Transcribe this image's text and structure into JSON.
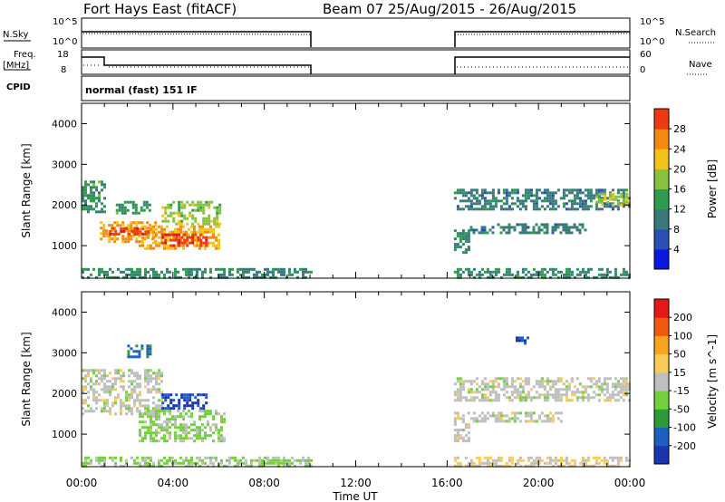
{
  "header": {
    "title": "Fort Hays East (fitACF)",
    "beam_date": "Beam 07  25/Aug/2015 - 26/Aug/2015"
  },
  "top_panels": {
    "nsky_label": "N.Sky",
    "nsearch_label": "N.Search",
    "noise_ticks": [
      "10^5",
      "10^0"
    ],
    "freq_label": "Freq.",
    "freq_unit": "[MHz]",
    "freq_ticks": [
      "18",
      "8"
    ],
    "nave_label": "Nave",
    "nave_ticks": [
      "60",
      "0"
    ],
    "cpid_label": "CPID",
    "cpid_value": "normal (fast) 151 IF"
  },
  "time_axis": {
    "label": "Time UT",
    "ticks": [
      "00:00",
      "04:00",
      "08:00",
      "12:00",
      "16:00",
      "20:00",
      "00:00"
    ]
  },
  "colors": {
    "power": [
      "#0b16e0",
      "#2a4fb5",
      "#3a7a7a",
      "#2e9b4e",
      "#86c23f",
      "#f4c21c",
      "#f58a10",
      "#ee3a12",
      "#d61a10"
    ],
    "velocity": [
      "#e41a1a",
      "#f25a14",
      "#f9a41e",
      "#f8cc58",
      "#bfbfbf",
      "#73d13e",
      "#2e9a3a",
      "#1d5fbf",
      "#1a34b0"
    ]
  },
  "chart_data": [
    {
      "type": "heatmap",
      "ylabel": "Slant Range [km]",
      "xlabel": "Time UT",
      "ylim": [
        200,
        4500
      ],
      "xlim": [
        0,
        24
      ],
      "y_ticks": [
        1000,
        2000,
        3000,
        4000
      ],
      "x_tick_labels": [
        "00:00",
        "04:00",
        "08:00",
        "12:00",
        "16:00",
        "20:00",
        "00:00"
      ],
      "colorbar": {
        "label": "Power [dB]",
        "ticks": [
          4,
          8,
          12,
          16,
          20,
          24,
          28
        ]
      },
      "data_gaps_hours": [
        [
          10.0,
          16.3
        ]
      ],
      "regions": [
        {
          "t": [
            0.0,
            1.0
          ],
          "r": [
            1800,
            2600
          ],
          "value": 12
        },
        {
          "t": [
            0.8,
            3.2
          ],
          "r": [
            1100,
            1600
          ],
          "value": 22
        },
        {
          "t": [
            1.2,
            3.0
          ],
          "r": [
            1250,
            1450
          ],
          "value": 27
        },
        {
          "t": [
            2.5,
            6.0
          ],
          "r": [
            900,
            1500
          ],
          "value": 21
        },
        {
          "t": [
            3.5,
            5.5
          ],
          "r": [
            1000,
            1300
          ],
          "value": 27
        },
        {
          "t": [
            3.5,
            6.0
          ],
          "r": [
            1500,
            2100
          ],
          "value": 16
        },
        {
          "t": [
            1.5,
            3.0
          ],
          "r": [
            1800,
            2100
          ],
          "value": 12
        },
        {
          "t": [
            0.0,
            10.0
          ],
          "r": [
            200,
            450
          ],
          "value": 10
        },
        {
          "t": [
            16.3,
            24.0
          ],
          "r": [
            200,
            450
          ],
          "value": 10
        },
        {
          "t": [
            16.3,
            17.0
          ],
          "r": [
            800,
            1400
          ],
          "value": 10
        },
        {
          "t": [
            17.0,
            22.0
          ],
          "r": [
            1300,
            1550
          ],
          "value": 9
        },
        {
          "t": [
            16.3,
            24.0
          ],
          "r": [
            1900,
            2400
          ],
          "value": 9
        },
        {
          "t": [
            22.5,
            24.0
          ],
          "r": [
            2000,
            2300
          ],
          "value": 17
        },
        {
          "t": [
            0.0,
            0.8
          ],
          "r": [
            2100,
            2400
          ],
          "value": 10
        }
      ]
    },
    {
      "type": "heatmap",
      "ylabel": "Slant Range [km]",
      "xlabel": "Time UT",
      "ylim": [
        200,
        4500
      ],
      "xlim": [
        0,
        24
      ],
      "y_ticks": [
        1000,
        2000,
        3000,
        4000
      ],
      "x_tick_labels": [
        "00:00",
        "04:00",
        "08:00",
        "12:00",
        "16:00",
        "20:00",
        "00:00"
      ],
      "colorbar": {
        "label": "Velocity [m s^-1]",
        "ticks": [
          200,
          100,
          50,
          15,
          -15,
          -50,
          -100,
          -200
        ]
      },
      "data_gaps_hours": [
        [
          10.0,
          16.3
        ]
      ],
      "regions": [
        {
          "t": [
            0.0,
            3.5
          ],
          "r": [
            1500,
            2600
          ],
          "value": 0
        },
        {
          "t": [
            2.5,
            6.2
          ],
          "r": [
            800,
            1600
          ],
          "value": 40
        },
        {
          "t": [
            3.5,
            5.5
          ],
          "r": [
            1600,
            2000
          ],
          "value": 200
        },
        {
          "t": [
            2.0,
            3.0
          ],
          "r": [
            2900,
            3200
          ],
          "value": 150
        },
        {
          "t": [
            0.0,
            10.0
          ],
          "r": [
            200,
            450
          ],
          "value": 30
        },
        {
          "t": [
            16.3,
            24.0
          ],
          "r": [
            1800,
            2400
          ],
          "value": 0
        },
        {
          "t": [
            16.3,
            21.0
          ],
          "r": [
            1300,
            1550
          ],
          "value": 0
        },
        {
          "t": [
            16.3,
            24.0
          ],
          "r": [
            200,
            450
          ],
          "value": -30
        },
        {
          "t": [
            16.3,
            17.0
          ],
          "r": [
            800,
            1400
          ],
          "value": 0
        },
        {
          "t": [
            19.0,
            19.5
          ],
          "r": [
            3200,
            3400
          ],
          "value": 200
        }
      ]
    }
  ]
}
